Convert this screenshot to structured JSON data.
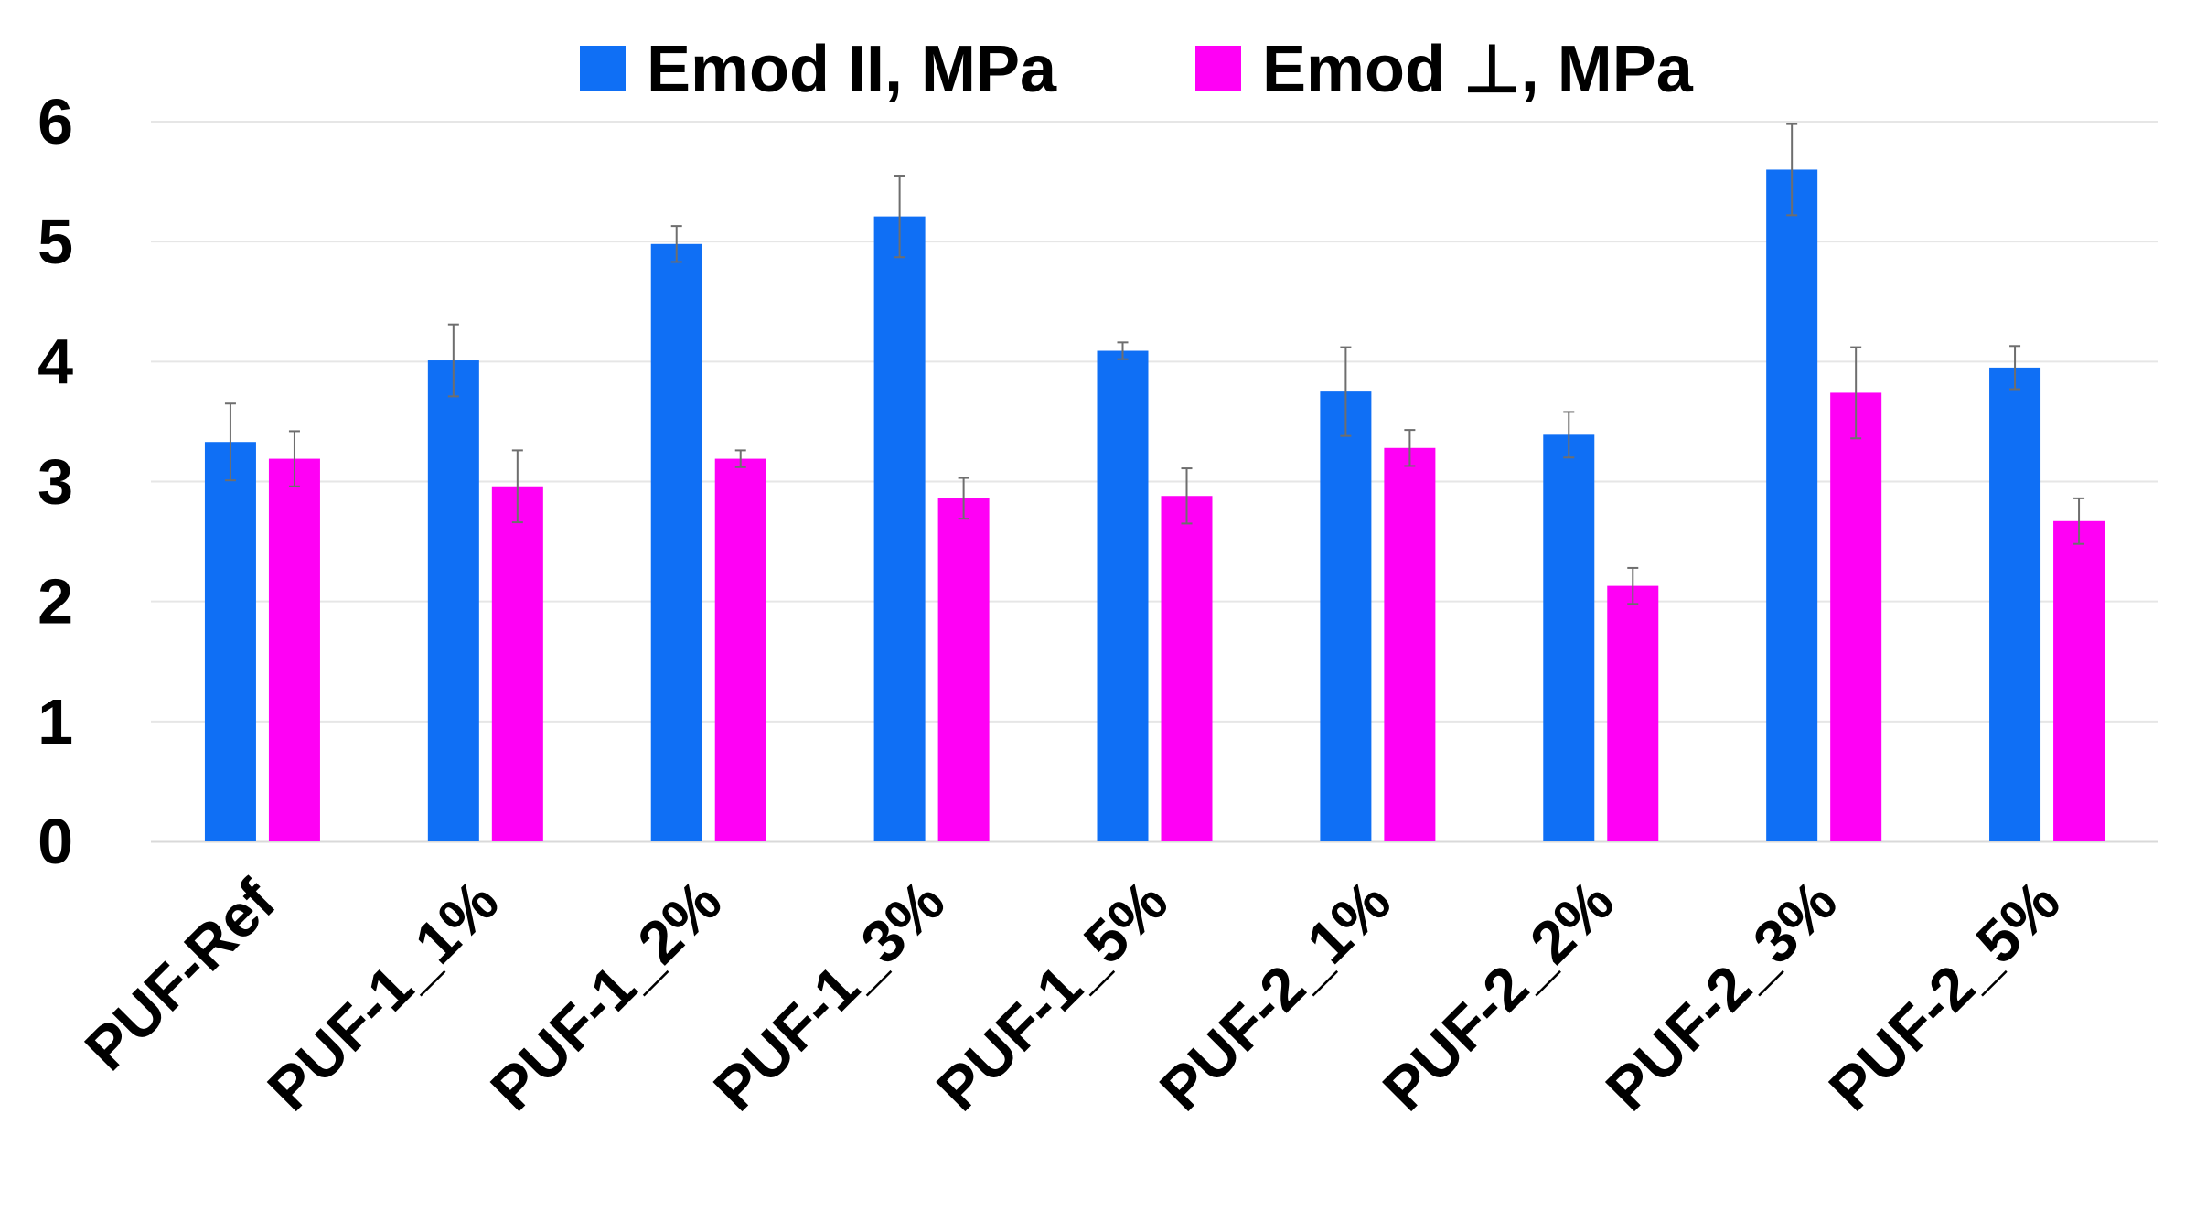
{
  "chart_data": {
    "type": "bar",
    "title": "",
    "xlabel": "",
    "ylabel": "",
    "ylim": [
      0,
      6
    ],
    "yticks": [
      0,
      1,
      2,
      3,
      4,
      5,
      6
    ],
    "grid": true,
    "legend_position": "top",
    "categories": [
      "PUF-Ref",
      "PUF-1_1%",
      "PUF-1_2%",
      "PUF-1_3%",
      "PUF-1_5%",
      "PUF-2_1%",
      "PUF-2_2%",
      "PUF-2_3%",
      "PUF-2_5%"
    ],
    "series": [
      {
        "name": "Emod II, MPa",
        "color": "#0F6FF5",
        "values": [
          3.33,
          4.01,
          4.98,
          5.21,
          4.09,
          3.75,
          3.39,
          5.6,
          3.95
        ],
        "errors": [
          0.32,
          0.3,
          0.15,
          0.34,
          0.07,
          0.37,
          0.19,
          0.38,
          0.18
        ]
      },
      {
        "name": "Emod ⊥, MPa",
        "color": "#FF00F5",
        "values": [
          3.19,
          2.96,
          3.19,
          2.86,
          2.88,
          3.28,
          2.13,
          3.74,
          2.67
        ],
        "errors": [
          0.23,
          0.3,
          0.07,
          0.17,
          0.23,
          0.15,
          0.15,
          0.38,
          0.19
        ]
      }
    ]
  }
}
